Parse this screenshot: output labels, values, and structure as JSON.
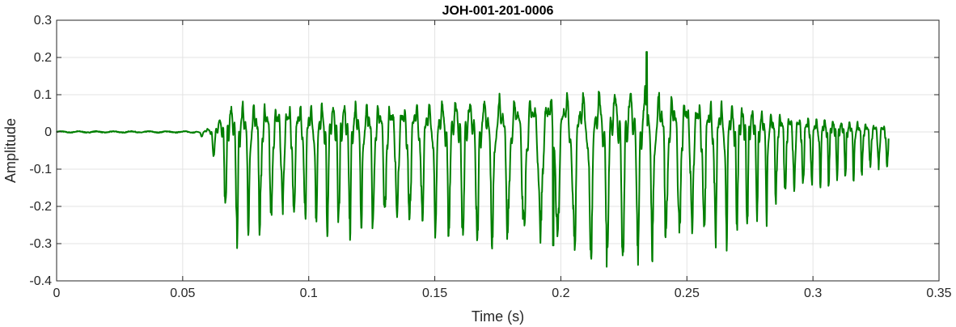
{
  "chart_data": {
    "type": "line",
    "title": "JOH-001-201-0006",
    "xlabel": "Time (s)",
    "ylabel": "Amplitude",
    "xlim": [
      0,
      0.35
    ],
    "ylim": [
      -0.4,
      0.3
    ],
    "x_ticks": [
      0,
      0.05,
      0.1,
      0.15,
      0.2,
      0.25,
      0.3,
      0.35
    ],
    "x_tick_labels": [
      "0",
      "0.05",
      "0.1",
      "0.15",
      "0.2",
      "0.25",
      "0.3",
      "0.35"
    ],
    "y_ticks": [
      -0.4,
      -0.3,
      -0.2,
      -0.1,
      0,
      0.1,
      0.2,
      0.3
    ],
    "y_tick_labels": [
      "-0.4",
      "-0.3",
      "-0.2",
      "-0.1",
      "0",
      "0.1",
      "0.2",
      "0.3"
    ],
    "grid": true,
    "line_color": "#007f00",
    "signal": {
      "t_start": 0,
      "t_end": 0.33,
      "silence_until": 0.055,
      "max_value": 0.215,
      "max_time": 0.234,
      "min_value": -0.305,
      "min_time": 0.197,
      "description_envelope": [
        {
          "t": 0.06,
          "pos": 0.04,
          "neg": -0.05
        },
        {
          "t": 0.07,
          "pos": 0.14,
          "neg": -0.26
        },
        {
          "t": 0.1,
          "pos": 0.14,
          "neg": -0.23
        },
        {
          "t": 0.15,
          "pos": 0.15,
          "neg": -0.24
        },
        {
          "t": 0.2,
          "pos": 0.2,
          "neg": -0.3
        },
        {
          "t": 0.234,
          "pos": 0.215,
          "neg": -0.29
        },
        {
          "t": 0.26,
          "pos": 0.15,
          "neg": -0.28
        },
        {
          "t": 0.3,
          "pos": 0.07,
          "neg": -0.13
        },
        {
          "t": 0.33,
          "pos": 0.03,
          "neg": -0.1
        }
      ]
    }
  }
}
